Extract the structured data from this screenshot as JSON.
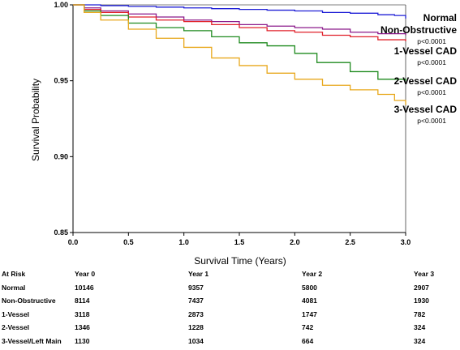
{
  "chart_data": {
    "type": "line",
    "xlabel": "Survival Time (Years)",
    "ylabel": "Survival Probability",
    "xlim": [
      0,
      3
    ],
    "ylim": [
      0.85,
      1.0
    ],
    "xticks": [
      "0.0",
      "0.5",
      "1.0",
      "1.5",
      "2.0",
      "2.5",
      "3.0"
    ],
    "yticks": [
      "0.85",
      "0.90",
      "0.95",
      "1.00"
    ],
    "grid": false,
    "legend": "right, inline labels",
    "series": [
      {
        "name": "Normal",
        "color": "#1f1fd6",
        "pvalue": "",
        "x": [
          0,
          0.25,
          0.5,
          0.75,
          1.0,
          1.25,
          1.5,
          1.75,
          2.0,
          2.25,
          2.5,
          2.75,
          2.9,
          3.0
        ],
        "y": [
          1.0,
          0.9995,
          0.999,
          0.9985,
          0.998,
          0.9975,
          0.997,
          0.9965,
          0.996,
          0.995,
          0.9945,
          0.9935,
          0.993,
          0.991
        ]
      },
      {
        "name": "Non-Obstructive",
        "color": "#8b1a8b",
        "pvalue": "p<0.0001",
        "x": [
          0,
          0.1,
          0.25,
          0.5,
          0.75,
          1.0,
          1.25,
          1.5,
          1.75,
          2.0,
          2.25,
          2.5,
          2.75,
          3.0
        ],
        "y": [
          1.0,
          0.998,
          0.996,
          0.994,
          0.992,
          0.99,
          0.989,
          0.987,
          0.986,
          0.985,
          0.984,
          0.982,
          0.981,
          0.98
        ]
      },
      {
        "name": "1-Vessel CAD",
        "color": "#e0202a",
        "pvalue": "p<0.0001",
        "x": [
          0,
          0.1,
          0.25,
          0.5,
          0.75,
          1.0,
          1.25,
          1.5,
          1.75,
          2.0,
          2.25,
          2.5,
          2.75,
          3.0
        ],
        "y": [
          1.0,
          0.997,
          0.995,
          0.992,
          0.99,
          0.989,
          0.987,
          0.985,
          0.983,
          0.982,
          0.98,
          0.979,
          0.977,
          0.976
        ]
      },
      {
        "name": "2-Vessel CAD",
        "color": "#1e8a1e",
        "pvalue": "p<0.0001",
        "x": [
          0,
          0.1,
          0.25,
          0.5,
          0.75,
          1.0,
          1.25,
          1.5,
          1.75,
          2.0,
          2.2,
          2.5,
          2.75,
          3.0
        ],
        "y": [
          1.0,
          0.996,
          0.993,
          0.988,
          0.985,
          0.983,
          0.979,
          0.975,
          0.973,
          0.968,
          0.962,
          0.956,
          0.951,
          0.95
        ]
      },
      {
        "name": "3-Vessel CAD",
        "color": "#e8a81c",
        "pvalue": "p<0.0001",
        "x": [
          0,
          0.1,
          0.25,
          0.5,
          0.75,
          1.0,
          1.25,
          1.5,
          1.75,
          2.0,
          2.25,
          2.5,
          2.75,
          2.9,
          3.0
        ],
        "y": [
          1.0,
          0.995,
          0.99,
          0.984,
          0.978,
          0.972,
          0.965,
          0.96,
          0.955,
          0.951,
          0.947,
          0.944,
          0.941,
          0.937,
          0.934
        ]
      }
    ]
  },
  "risk_table": {
    "header": [
      "At Risk",
      "Year 0",
      "Year 1",
      "Year 2",
      "Year 3"
    ],
    "rows": [
      {
        "label": "Normal",
        "values": [
          "10146",
          "9357",
          "5800",
          "2907"
        ]
      },
      {
        "label": "Non-Obstructive",
        "values": [
          "8114",
          "7437",
          "4081",
          "1930"
        ]
      },
      {
        "label": "1-Vessel",
        "values": [
          "3118",
          "2873",
          "1747",
          "782"
        ]
      },
      {
        "label": "2-Vessel",
        "values": [
          "1346",
          "1228",
          "742",
          "324"
        ]
      },
      {
        "label": "3-Vessel/Left Main",
        "values": [
          "1130",
          "1034",
          "664",
          "324"
        ]
      }
    ]
  }
}
